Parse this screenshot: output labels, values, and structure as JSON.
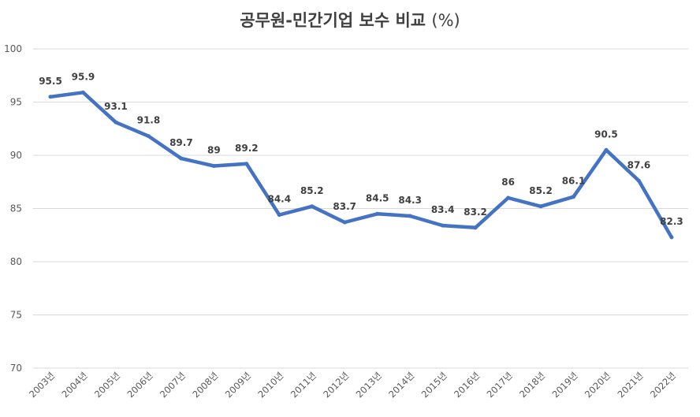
{
  "chart_data": {
    "type": "line",
    "title": "공무원-민간기업 보수 비교",
    "title_unit": "(%)",
    "xlabel": "",
    "ylabel": "",
    "categories": [
      "2003년",
      "2004년",
      "2005년",
      "2006년",
      "2007년",
      "2008년",
      "2009년",
      "2010년",
      "2011년",
      "2012년",
      "2013년",
      "2014년",
      "2015년",
      "2016년",
      "2017년",
      "2018년",
      "2019년",
      "2020년",
      "2021년",
      "2022년"
    ],
    "series": [
      {
        "name": "공무원-민간기업 보수 비교",
        "values": [
          95.5,
          95.9,
          93.1,
          91.8,
          89.7,
          89,
          89.2,
          84.4,
          85.2,
          83.7,
          84.5,
          84.3,
          83.4,
          83.2,
          86,
          85.2,
          86.1,
          90.5,
          87.6,
          82.3
        ],
        "labels": [
          "95.5",
          "95.9",
          "93.1",
          "91.8",
          "89.7",
          "89",
          "89.2",
          "84.4",
          "85.2",
          "83.7",
          "84.5",
          "84.3",
          "83.4",
          "83.2",
          "86",
          "85.2",
          "86.1",
          "90.5",
          "87.6",
          "82.3"
        ],
        "color": "#4472C4"
      }
    ],
    "ylim": [
      70,
      100
    ],
    "yticks": [
      70,
      75,
      80,
      85,
      90,
      95,
      100
    ],
    "ytick_labels": [
      "70",
      "75",
      "80",
      "85",
      "90",
      "95",
      "100"
    ],
    "grid": true,
    "legend": "none"
  },
  "colors": {
    "line": "#4472C4",
    "grid": "#D9D9D9",
    "text": "#404040"
  }
}
